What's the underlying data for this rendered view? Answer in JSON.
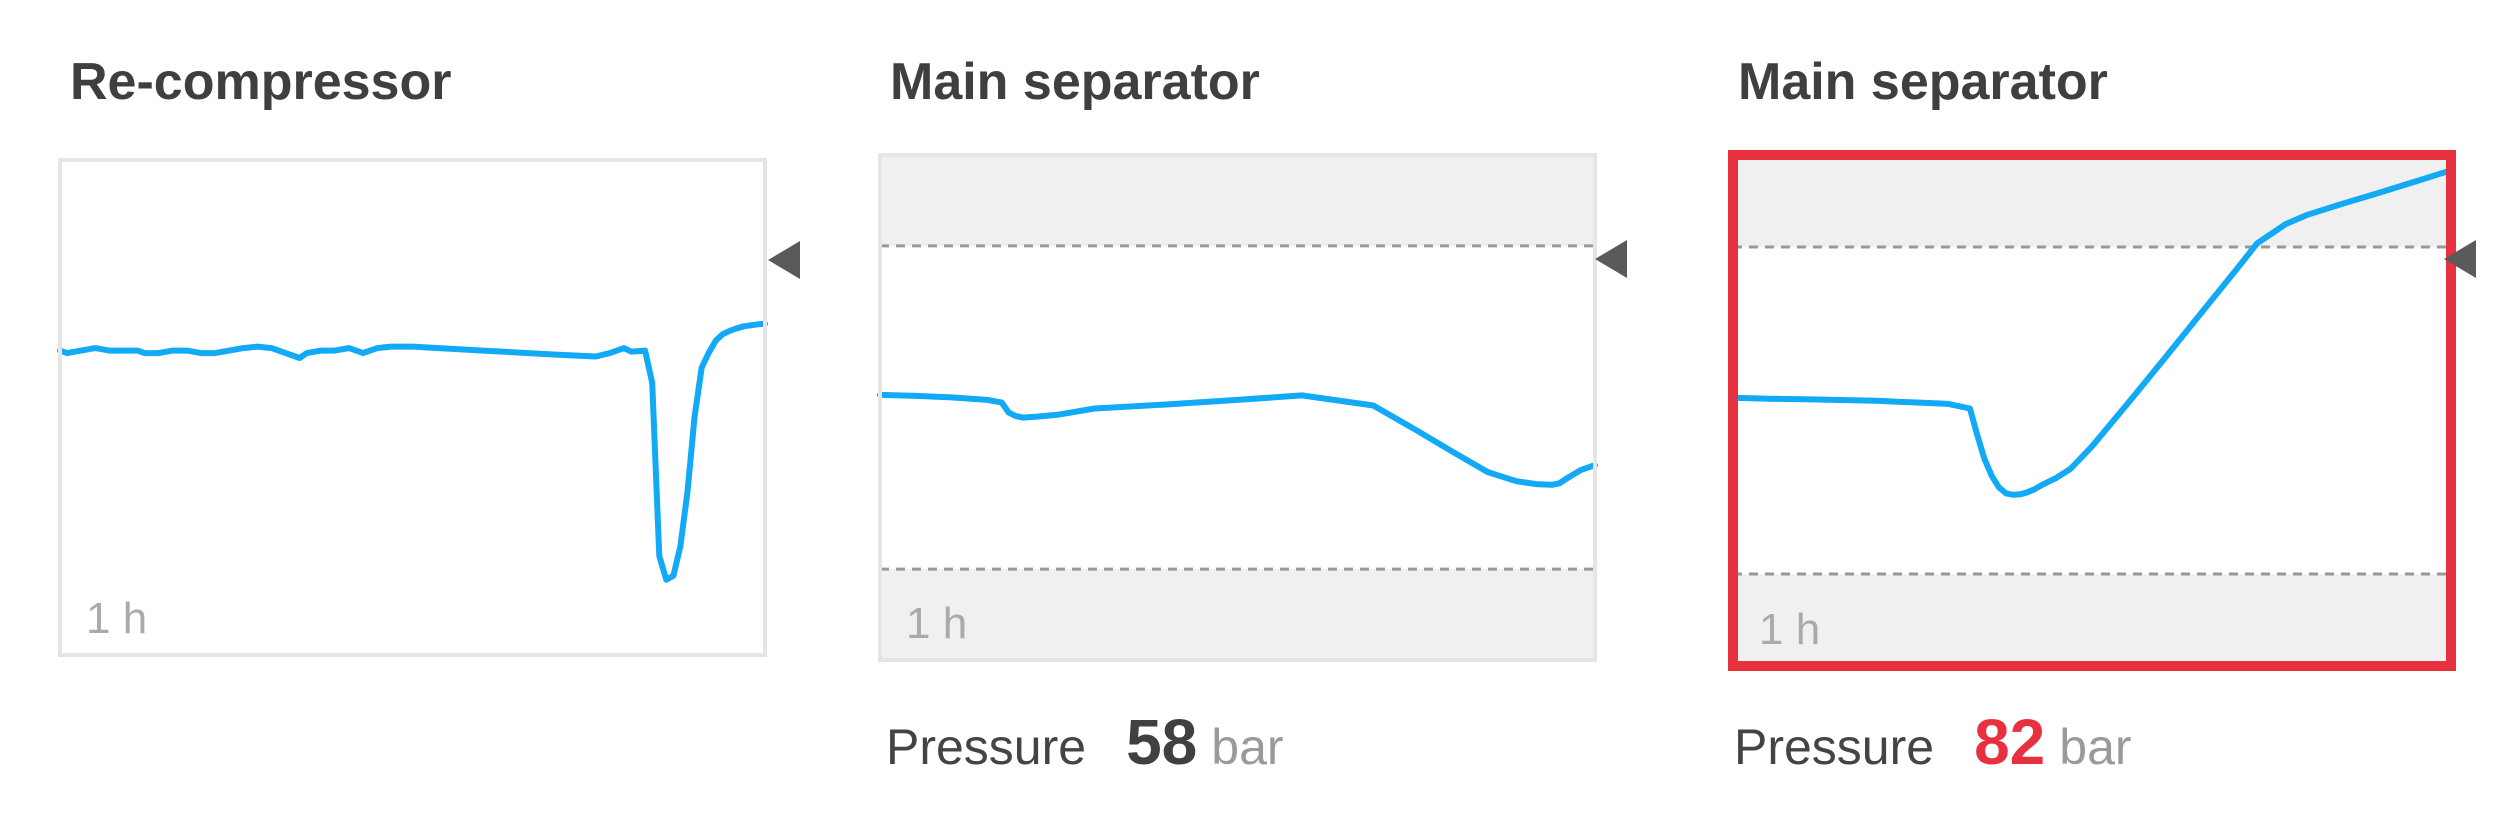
{
  "colors": {
    "line": "#12a9f5",
    "band": "#f0f0f0",
    "border": "#e5e5e5",
    "threshold": "#999999",
    "alarm": "#e8313f",
    "marker": "#5a5a5a"
  },
  "panels": [
    {
      "title": "Re-compressor",
      "time_label": "1 h",
      "alarm": false,
      "readout": null
    },
    {
      "title": "Main separator",
      "time_label": "1 h",
      "alarm": false,
      "readout": {
        "label": "Pressure",
        "value": "58",
        "unit": "bar"
      }
    },
    {
      "title": "Main separator",
      "time_label": "1 h",
      "alarm": true,
      "readout": {
        "label": "Pressure",
        "value": "82",
        "unit": "bar"
      }
    }
  ],
  "chart_data": [
    {
      "type": "line",
      "title": "Re-compressor",
      "xlabel": "1 h",
      "ylim": [
        0,
        100
      ],
      "x": [
        0,
        1,
        3,
        5,
        7,
        9,
        11,
        12,
        14,
        16,
        18,
        20,
        22,
        24,
        26,
        28,
        30,
        32,
        34,
        35,
        37,
        39,
        41,
        42,
        43,
        44,
        45,
        47,
        50,
        60,
        70,
        76,
        78,
        80,
        81,
        83,
        84,
        85,
        86,
        87,
        88,
        89,
        90,
        91,
        92,
        93,
        94,
        95,
        96,
        97,
        98,
        99,
        100
      ],
      "series": [
        {
          "values": [
            61.5,
            61,
            61.5,
            62,
            61.5,
            61.5,
            61.5,
            61,
            61,
            61.5,
            61.5,
            61,
            61,
            61.5,
            62,
            62.3,
            62,
            61,
            60,
            61,
            61.5,
            61.5,
            62,
            61.5,
            61,
            61.5,
            62,
            62.3,
            62.3,
            61.5,
            60.7,
            60.3,
            61,
            62,
            61.3,
            61.5,
            55,
            20,
            15.2,
            16,
            22,
            33,
            48,
            58,
            61,
            63.5,
            64.8,
            65.5,
            66,
            66.4,
            66.6,
            66.8,
            66.9
          ]
        }
      ]
    },
    {
      "type": "line",
      "title": "Main separator",
      "xlabel": "1 h",
      "ylim": [
        0,
        100
      ],
      "x": [
        0,
        5,
        10,
        15,
        17,
        18,
        19,
        20,
        22,
        25,
        30,
        40,
        50,
        59,
        69,
        75,
        80,
        85,
        89,
        92,
        94,
        95,
        96,
        98,
        100
      ],
      "series": [
        {
          "values": [
            52.5,
            52.3,
            52,
            51.5,
            51,
            49,
            48.3,
            48,
            48.2,
            48.6,
            49.8,
            50.6,
            51.5,
            52.4,
            50.4,
            45.5,
            41.3,
            37.2,
            35.4,
            34.8,
            34.7,
            35,
            35.9,
            37.6,
            38.6
          ]
        }
      ]
    },
    {
      "type": "line",
      "title": "Main separator",
      "xlabel": "1 h",
      "ylim": [
        0,
        100
      ],
      "x": [
        0,
        5,
        10,
        20,
        30,
        33,
        34,
        35,
        36,
        37,
        38,
        39,
        40,
        41,
        42,
        43,
        45,
        47,
        49,
        50,
        55,
        60,
        65,
        70,
        73,
        77,
        80,
        85,
        90,
        95,
        100
      ],
      "series": [
        {
          "values": [
            52.5,
            52.3,
            52.2,
            51.9,
            51.3,
            50.4,
            45.3,
            40.6,
            37.3,
            35,
            33.8,
            33.5,
            33.6,
            34,
            34.6,
            35.4,
            36.8,
            38.6,
            41.5,
            43,
            51.4,
            60,
            68.7,
            77.4,
            82.7,
            86.5,
            88.3,
            90.5,
            92.6,
            94.8,
            97
          ]
        }
      ]
    }
  ]
}
